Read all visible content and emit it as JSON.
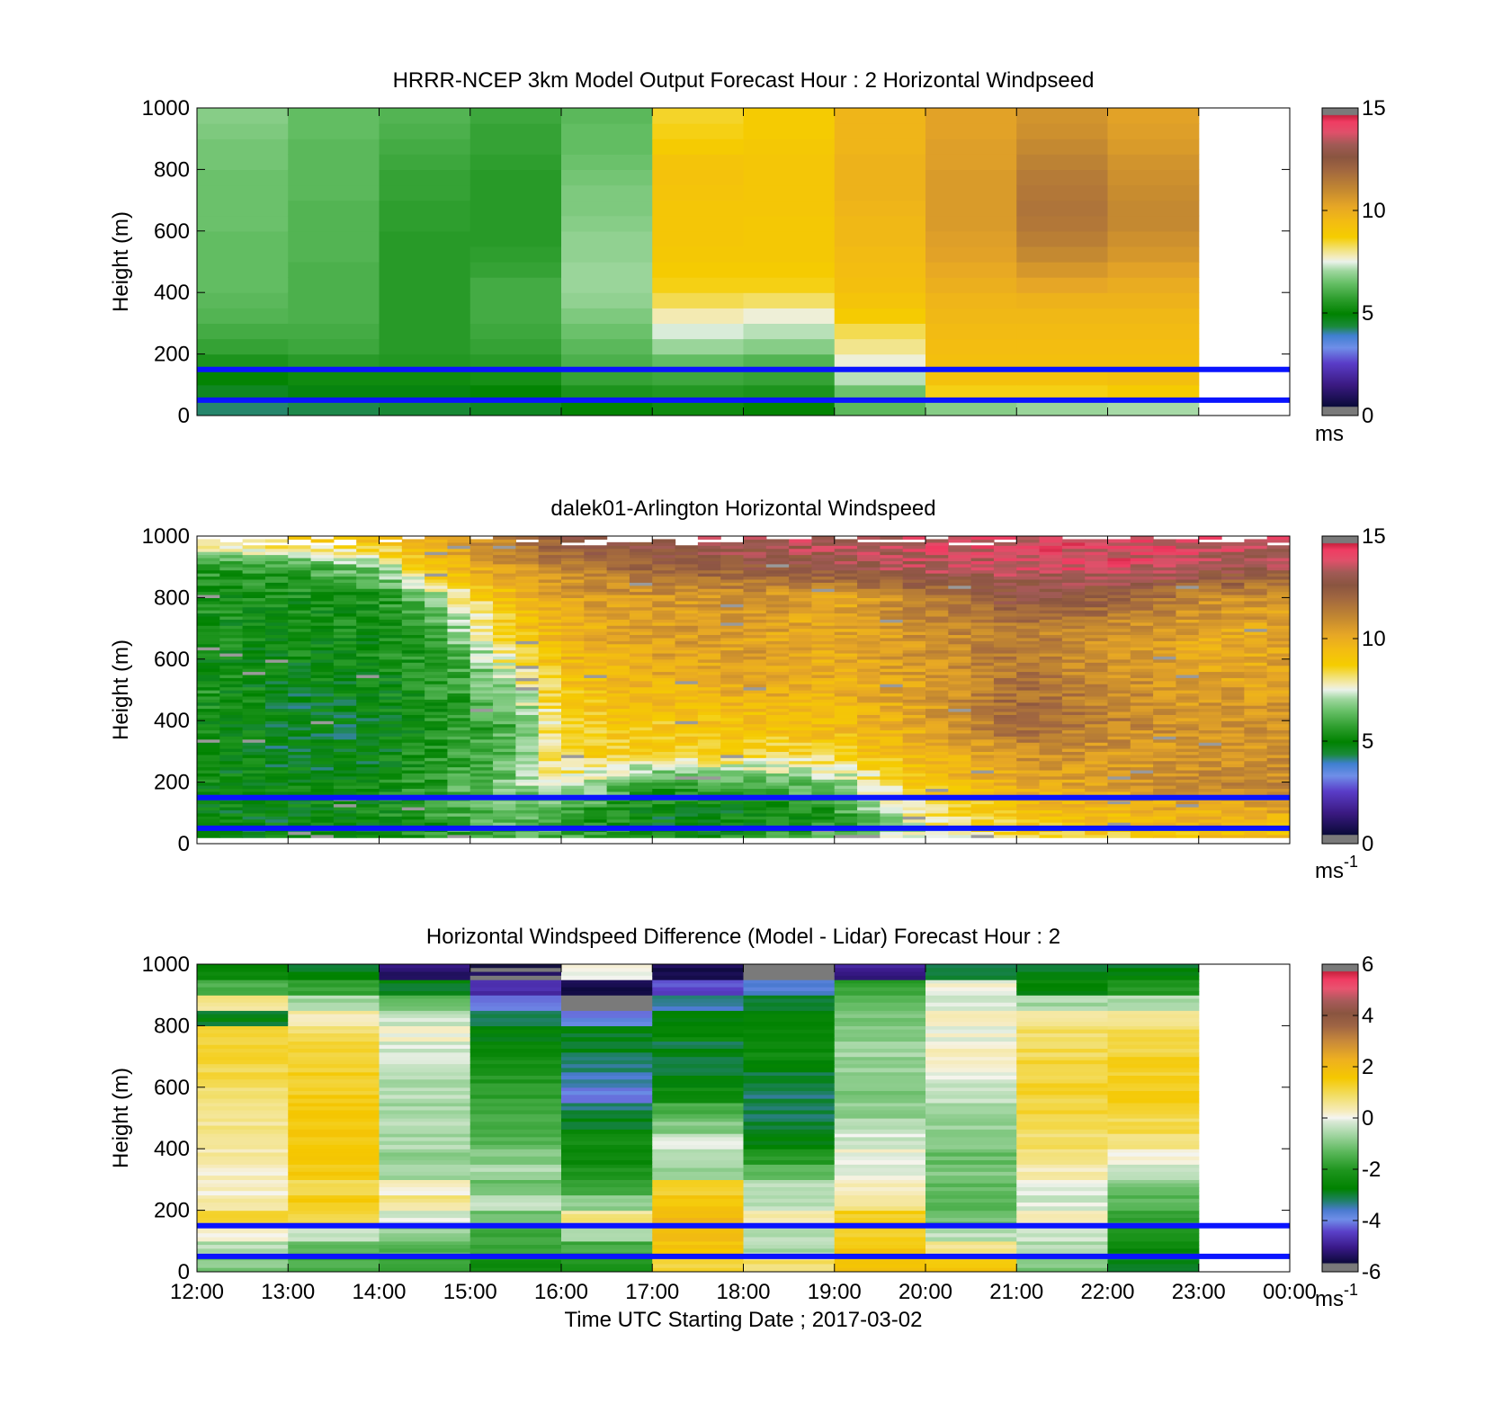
{
  "chart_data": [
    {
      "type": "heatmap",
      "title": "HRRR-NCEP 3km Model Output   Forecast Hour : 2 Horizontal Windpseed",
      "ylabel": "Height (m)",
      "xlabel": "",
      "ylim": [
        0,
        1000
      ],
      "yticks": [
        "0",
        "200",
        "400",
        "600",
        "800",
        "1000"
      ],
      "x_ticks_count": 13,
      "x_range_hours": [
        12,
        24
      ],
      "levels": [
        0,
        50,
        100,
        150,
        200,
        250,
        300,
        350,
        400,
        450,
        500,
        550,
        600,
        650,
        700,
        750,
        800,
        850,
        900,
        950,
        1000
      ],
      "columns": [
        {
          "start": 12,
          "end": 13,
          "values": [
            4.2,
            4.6,
            5.0,
            5.4,
            5.8,
            6.0,
            6.2,
            6.3,
            6.4,
            6.4,
            6.4,
            6.4,
            6.5,
            6.5,
            6.5,
            6.5,
            6.6,
            6.6,
            6.7,
            6.8
          ]
        },
        {
          "start": 13,
          "end": 14,
          "values": [
            4.3,
            4.8,
            5.2,
            5.6,
            5.9,
            6.0,
            6.1,
            6.1,
            6.1,
            6.1,
            6.2,
            6.2,
            6.2,
            6.2,
            6.3,
            6.3,
            6.3,
            6.3,
            6.4,
            6.4
          ]
        },
        {
          "start": 14,
          "end": 15,
          "values": [
            4.4,
            4.8,
            5.2,
            5.5,
            5.6,
            5.6,
            5.6,
            5.6,
            5.6,
            5.6,
            5.6,
            5.6,
            5.7,
            5.7,
            5.8,
            5.8,
            5.9,
            6.0,
            6.1,
            6.2
          ]
        },
        {
          "start": 15,
          "end": 16,
          "values": [
            4.6,
            5.0,
            5.3,
            5.6,
            5.8,
            5.9,
            6.0,
            6.0,
            6.0,
            5.8,
            5.7,
            5.6,
            5.6,
            5.6,
            5.6,
            5.6,
            5.7,
            5.8,
            5.8,
            5.9
          ]
        },
        {
          "start": 16,
          "end": 17,
          "values": [
            5.0,
            5.4,
            5.8,
            6.1,
            6.3,
            6.5,
            6.7,
            6.9,
            7.0,
            7.0,
            6.9,
            6.9,
            6.8,
            6.7,
            6.7,
            6.6,
            6.5,
            6.4,
            6.4,
            6.3
          ]
        },
        {
          "start": 17,
          "end": 18,
          "values": [
            5.2,
            5.5,
            5.9,
            6.4,
            7.0,
            7.4,
            7.8,
            8.3,
            8.6,
            8.8,
            8.9,
            9.0,
            9.0,
            9.0,
            9.1,
            9.2,
            9.1,
            8.8,
            8.6,
            8.5
          ]
        },
        {
          "start": 18,
          "end": 19,
          "values": [
            5.0,
            5.4,
            5.8,
            6.2,
            6.8,
            7.2,
            7.6,
            8.2,
            8.6,
            8.8,
            8.9,
            8.9,
            8.9,
            9.0,
            9.0,
            9.0,
            9.0,
            8.9,
            8.8,
            8.8
          ]
        },
        {
          "start": 19,
          "end": 20,
          "values": [
            6.3,
            6.5,
            7.2,
            7.6,
            8.0,
            8.3,
            8.8,
            9.1,
            9.3,
            9.4,
            9.5,
            9.6,
            9.6,
            9.7,
            9.8,
            9.8,
            9.8,
            9.7,
            9.7,
            9.7
          ]
        },
        {
          "start": 20,
          "end": 21,
          "values": [
            6.8,
            8.6,
            9.2,
            9.3,
            9.4,
            9.5,
            9.6,
            9.7,
            9.9,
            10.1,
            10.3,
            10.4,
            10.5,
            10.5,
            10.5,
            10.5,
            10.4,
            10.4,
            10.3,
            10.3
          ]
        },
        {
          "start": 21,
          "end": 22,
          "values": [
            7.0,
            8.6,
            9.2,
            9.3,
            9.4,
            9.5,
            9.6,
            9.8,
            10.2,
            10.6,
            11.0,
            11.3,
            11.5,
            11.6,
            11.5,
            11.4,
            11.2,
            11.0,
            10.8,
            10.7
          ]
        },
        {
          "start": 22,
          "end": 23,
          "values": [
            7.1,
            8.8,
            9.3,
            9.3,
            9.4,
            9.5,
            9.6,
            9.8,
            10.0,
            10.3,
            10.6,
            10.8,
            11.0,
            11.0,
            10.9,
            10.8,
            10.7,
            10.5,
            10.4,
            10.3
          ]
        }
      ],
      "hlines_m": [
        150,
        50
      ],
      "colorbar": {
        "min": 0,
        "max": 15,
        "ticks": [
          "0",
          "5",
          "10",
          "15"
        ],
        "unit": "ms",
        "unit_sup": ""
      }
    },
    {
      "type": "heatmap",
      "title": "dalek01-Arlington  Horizontal Windspeed",
      "ylabel": "Height (m)",
      "xlabel": "",
      "ylim": [
        0,
        1000
      ],
      "yticks": [
        "0",
        "200",
        "400",
        "600",
        "800",
        "1000"
      ],
      "x_ticks_count": 13,
      "x_range_hours": [
        12,
        24
      ],
      "time_anchors": [
        12,
        13,
        14,
        14.5,
        15,
        15.5,
        16,
        17,
        18,
        19,
        20,
        21,
        22,
        23,
        24
      ],
      "height_anchors": [
        0,
        100,
        200,
        300,
        400,
        500,
        600,
        700,
        800,
        900,
        1000
      ],
      "grid_values": [
        [
          4.6,
          4.8,
          5.0,
          5.4,
          5.8,
          5.8,
          6.0,
          5.2,
          5.4,
          6.4,
          7.2,
          8.0,
          8.5,
          8.8,
          9.0
        ],
        [
          4.9,
          4.9,
          5.2,
          5.6,
          6.2,
          6.4,
          6.0,
          4.8,
          4.9,
          5.6,
          8.0,
          9.0,
          9.4,
          9.8,
          10.0
        ],
        [
          5.0,
          4.9,
          5.0,
          5.6,
          6.2,
          6.6,
          7.8,
          5.8,
          6.2,
          6.8,
          9.2,
          10.0,
          10.4,
          11.0,
          11.0
        ],
        [
          5.2,
          4.6,
          4.8,
          5.4,
          5.8,
          6.4,
          8.6,
          8.8,
          8.6,
          8.8,
          9.6,
          10.8,
          10.6,
          10.6,
          10.8
        ],
        [
          5.4,
          4.6,
          4.8,
          5.2,
          5.6,
          6.2,
          8.6,
          9.0,
          9.2,
          9.4,
          10.2,
          12.2,
          11.2,
          10.6,
          10.6
        ],
        [
          5.4,
          4.8,
          5.0,
          5.4,
          6.0,
          7.0,
          9.0,
          9.6,
          10.0,
          9.8,
          10.4,
          11.8,
          11.0,
          10.4,
          10.4
        ],
        [
          5.2,
          5.0,
          5.2,
          5.6,
          6.4,
          8.4,
          9.4,
          10.2,
          10.4,
          10.0,
          10.6,
          11.4,
          10.8,
          10.2,
          10.2
        ],
        [
          5.2,
          5.0,
          5.2,
          5.8,
          7.2,
          9.0,
          9.8,
          10.4,
          10.4,
          10.0,
          10.8,
          11.4,
          10.8,
          10.2,
          10.2
        ],
        [
          5.4,
          5.2,
          5.4,
          6.4,
          8.2,
          9.4,
          10.2,
          10.6,
          10.6,
          10.2,
          11.2,
          12.8,
          12.4,
          11.0,
          10.6
        ],
        [
          5.6,
          5.8,
          6.8,
          9.0,
          10.0,
          10.6,
          11.2,
          12.0,
          12.4,
          12.8,
          13.4,
          13.6,
          13.8,
          13.4,
          13.0
        ],
        [
          9.0,
          9.2,
          9.6,
          10.2,
          10.8,
          11.6,
          12.8,
          13.4,
          13.6,
          13.6,
          13.8,
          13.8,
          14.0,
          13.8,
          13.6
        ]
      ],
      "hlines_m": [
        150,
        50
      ],
      "colorbar": {
        "min": 0,
        "max": 15,
        "ticks": [
          "0",
          "5",
          "10",
          "15"
        ],
        "unit": "ms",
        "unit_sup": "-1"
      }
    },
    {
      "type": "heatmap",
      "title": "Horizontal Windspeed Difference (Model - Lidar) Forecast Hour : 2",
      "ylabel": "Height (m)",
      "xlabel": "Time UTC  Starting Date ; 2017-03-02",
      "ylim": [
        0,
        1000
      ],
      "yticks": [
        "0",
        "200",
        "400",
        "600",
        "800",
        "1000"
      ],
      "xticks": [
        "12:00",
        "13:00",
        "14:00",
        "15:00",
        "16:00",
        "17:00",
        "18:00",
        "19:00",
        "20:00",
        "21:00",
        "22:00",
        "23:00",
        "00:00"
      ],
      "x_ticks_count": 13,
      "x_range_hours": [
        12,
        24
      ],
      "levels": [
        0,
        50,
        100,
        150,
        200,
        250,
        300,
        350,
        400,
        450,
        500,
        550,
        600,
        650,
        700,
        750,
        800,
        850,
        900,
        950,
        1000
      ],
      "columns": [
        {
          "start": 12,
          "end": 13,
          "values": [
            -1.0,
            -0.5,
            0.0,
            1.2,
            0.6,
            0.2,
            0.3,
            0.4,
            0.5,
            0.6,
            0.7,
            0.9,
            1.0,
            1.1,
            1.2,
            1.3,
            -2.8,
            0.5,
            -1.5,
            -2.6
          ]
        },
        {
          "start": 13,
          "end": 14,
          "values": [
            -1.6,
            -1.2,
            -0.4,
            1.0,
            1.4,
            1.0,
            1.4,
            1.4,
            1.5,
            1.6,
            1.5,
            1.4,
            1.3,
            1.2,
            1.1,
            0.8,
            0.4,
            -0.6,
            -1.8,
            -2.8
          ]
        },
        {
          "start": 14,
          "end": 15,
          "values": [
            -1.8,
            -1.4,
            -0.8,
            -0.2,
            0.6,
            0.2,
            -0.6,
            -0.8,
            -0.6,
            -0.4,
            -0.6,
            -0.4,
            -0.5,
            -0.3,
            -0.2,
            0.1,
            -0.3,
            -1.2,
            -2.8,
            -5.2
          ]
        },
        {
          "start": 15,
          "end": 16,
          "values": [
            -2.4,
            -1.8,
            -1.6,
            -1.2,
            -0.4,
            -1.2,
            -0.6,
            -1.0,
            -1.4,
            -1.6,
            -1.6,
            -1.8,
            -2.0,
            -2.2,
            -2.6,
            -2.8,
            -3.2,
            -4.2,
            -4.8,
            -5.6
          ]
        },
        {
          "start": 16,
          "end": 17,
          "values": [
            -2.0,
            -1.6,
            -0.4,
            0.6,
            -0.8,
            -1.8,
            -2.2,
            -2.6,
            -2.4,
            -2.8,
            -3.2,
            -4.0,
            -3.6,
            -3.2,
            -3.0,
            -2.8,
            -4.0,
            -5.8,
            -5.6,
            0.0
          ]
        },
        {
          "start": 17,
          "end": 18,
          "values": [
            1.2,
            1.6,
            1.8,
            2.0,
            1.6,
            1.2,
            -0.8,
            -0.4,
            -0.2,
            -1.0,
            -1.6,
            -2.4,
            -2.8,
            -3.2,
            -3.0,
            -2.6,
            -2.8,
            -3.4,
            -4.4,
            -5.4
          ]
        },
        {
          "start": 18,
          "end": 19,
          "values": [
            0.8,
            -0.6,
            -0.4,
            0.4,
            -0.4,
            -0.4,
            -1.2,
            -2.0,
            -2.8,
            -3.0,
            -3.2,
            -3.2,
            -3.0,
            -2.6,
            -2.4,
            -2.6,
            -2.8,
            -3.0,
            -3.6,
            -5.8
          ]
        },
        {
          "start": 19,
          "end": 20,
          "values": [
            1.8,
            1.6,
            1.2,
            1.4,
            0.6,
            0.2,
            0.0,
            0.1,
            -0.2,
            -0.4,
            -0.8,
            -1.0,
            -1.0,
            -0.8,
            -0.6,
            -0.8,
            -1.0,
            -1.4,
            -1.8,
            -5.0
          ]
        },
        {
          "start": 20,
          "end": 21,
          "values": [
            1.6,
            0.6,
            -0.4,
            -1.2,
            -1.4,
            -1.2,
            -1.0,
            -1.2,
            -1.0,
            -0.8,
            -0.6,
            -0.3,
            -0.2,
            0.2,
            0.3,
            0.0,
            0.2,
            -0.2,
            0.0,
            -3.2
          ]
        },
        {
          "start": 21,
          "end": 22,
          "values": [
            -1.0,
            -0.6,
            -0.2,
            0.4,
            -0.2,
            0.0,
            0.3,
            0.6,
            0.8,
            1.0,
            1.1,
            1.2,
            1.2,
            1.1,
            1.0,
            0.9,
            0.6,
            -0.6,
            -2.6,
            -2.8
          ]
        },
        {
          "start": 22,
          "end": 23,
          "values": [
            -2.8,
            -2.6,
            -2.2,
            -1.8,
            -1.4,
            -1.0,
            -0.4,
            0.2,
            0.8,
            1.0,
            1.2,
            1.3,
            1.3,
            1.3,
            1.2,
            1.0,
            0.6,
            -0.6,
            -2.0,
            -2.8
          ]
        }
      ],
      "hlines_m": [
        150,
        50
      ],
      "colorbar": {
        "min": -6,
        "max": 6,
        "ticks": [
          "-6",
          "-4",
          "-2",
          "0",
          "2",
          "4",
          "6"
        ],
        "unit": "ms",
        "unit_sup": "-1"
      }
    }
  ]
}
